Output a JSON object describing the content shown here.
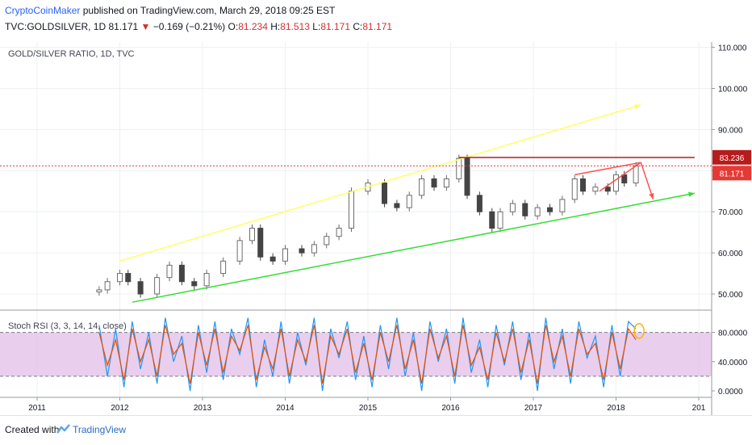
{
  "header": {
    "author": "CryptoCoinMaker",
    "published": "published on TradingView.com, March 29, 2018 09:25 EST",
    "symbol": "TVC:GOLDSILVER, 1D",
    "last": "81.171",
    "change": "−0.169 (−0.21%)",
    "o_label": "O:",
    "o": "81.234",
    "h_label": "H:",
    "h": "81.513",
    "l_label": "L:",
    "l": "81.171",
    "c_label": "C:",
    "c": "81.171"
  },
  "footer": {
    "created_with": "Created with",
    "brand": "TradingView"
  },
  "colors": {
    "up_candle": "#6d6d6d",
    "down_candle": "#444444",
    "upper_channel": "#ffff66",
    "lower_channel": "#33dd33",
    "resistance": "#b71c1c",
    "wedge": "#ff5252",
    "stoch_k": "#2196f3",
    "stoch_d": "#e65100",
    "stoch_band": "#e1bee7"
  },
  "chart_data": [
    {
      "type": "candlestick",
      "title": "GOLD/SILVER RATIO, 1D, TVC",
      "x_ticks": [
        "2011",
        "2012",
        "2013",
        "2014",
        "2015",
        "2016",
        "2017",
        "2018",
        "201"
      ],
      "y_ticks": [
        "110.000",
        "100.000",
        "90.000",
        "80.000",
        "70.000",
        "60.000",
        "50.000"
      ],
      "ylim": [
        47,
        111
      ],
      "price_labels": {
        "resistance": "83.236",
        "last": "81.171"
      },
      "series": [
        {
          "x": [
            2011.75,
            2011.85,
            2012.0,
            2012.1,
            2012.25,
            2012.45,
            2012.6,
            2012.75,
            2012.9,
            2013.05,
            2013.25,
            2013.45,
            2013.6,
            2013.7,
            2013.85,
            2014.0,
            2014.2,
            2014.35,
            2014.5,
            2014.65,
            2014.8,
            2015.0,
            2015.2,
            2015.35,
            2015.5,
            2015.65,
            2015.8,
            2015.95,
            2016.1,
            2016.2,
            2016.35,
            2016.5,
            2016.6,
            2016.75,
            2016.9,
            2017.05,
            2017.2,
            2017.35,
            2017.5,
            2017.6,
            2017.75,
            2017.9,
            2018.0,
            2018.1,
            2018.24
          ],
          "y": [
            51,
            53,
            55,
            53,
            50,
            54,
            57,
            53,
            52,
            55,
            58,
            63,
            66,
            59,
            58,
            61,
            60,
            62,
            64,
            66,
            75,
            77,
            72,
            71,
            74,
            78,
            76,
            78,
            83,
            74,
            70,
            66,
            70,
            72,
            69,
            71,
            70,
            73,
            78,
            75,
            76,
            75,
            79,
            77,
            81.2
          ]
        }
      ],
      "annotations": [
        {
          "type": "upper_channel",
          "x": [
            2012.0,
            2018.3
          ],
          "y": [
            58,
            96
          ]
        },
        {
          "type": "lower_channel",
          "x": [
            2012.15,
            2018.95
          ],
          "y": [
            48,
            74.5
          ]
        },
        {
          "type": "resistance",
          "x": [
            2016.1,
            2018.95
          ],
          "y": [
            83.2,
            83.2
          ]
        },
        {
          "type": "wedge_top",
          "x": [
            2017.5,
            2018.3
          ],
          "y": [
            79,
            82
          ]
        },
        {
          "type": "wedge_bottom",
          "x": [
            2017.8,
            2018.3
          ],
          "y": [
            75,
            82
          ]
        },
        {
          "type": "projection",
          "x": [
            2018.3,
            2018.45
          ],
          "y": [
            82,
            73
          ]
        }
      ]
    },
    {
      "type": "line",
      "title": "Stoch RSI (3, 3, 14, 14, close)",
      "y_ticks": [
        "80.0000",
        "40.0000",
        "0.0000"
      ],
      "ylim": [
        -5,
        105
      ],
      "bands": [
        20,
        80
      ],
      "series": [
        {
          "name": "K",
          "x": [
            2011.75,
            2011.85,
            2011.95,
            2012.05,
            2012.15,
            2012.25,
            2012.35,
            2012.45,
            2012.55,
            2012.65,
            2012.75,
            2012.85,
            2012.95,
            2013.05,
            2013.15,
            2013.25,
            2013.35,
            2013.45,
            2013.55,
            2013.65,
            2013.75,
            2013.85,
            2013.95,
            2014.05,
            2014.15,
            2014.25,
            2014.35,
            2014.45,
            2014.55,
            2014.65,
            2014.75,
            2014.85,
            2014.95,
            2015.05,
            2015.15,
            2015.25,
            2015.35,
            2015.45,
            2015.55,
            2015.65,
            2015.75,
            2015.85,
            2015.95,
            2016.05,
            2016.15,
            2016.25,
            2016.35,
            2016.45,
            2016.55,
            2016.65,
            2016.75,
            2016.85,
            2016.95,
            2017.05,
            2017.15,
            2017.25,
            2017.35,
            2017.45,
            2017.55,
            2017.65,
            2017.75,
            2017.85,
            2017.95,
            2018.05,
            2018.15,
            2018.24
          ],
          "y": [
            90,
            20,
            85,
            5,
            95,
            30,
            80,
            10,
            100,
            40,
            75,
            0,
            90,
            25,
            95,
            15,
            85,
            50,
            100,
            5,
            70,
            20,
            95,
            10,
            80,
            35,
            100,
            0,
            85,
            45,
            95,
            15,
            75,
            5,
            90,
            30,
            100,
            20,
            80,
            0,
            95,
            40,
            85,
            10,
            100,
            25,
            70,
            5,
            90,
            35,
            95,
            15,
            80,
            0,
            100,
            30,
            85,
            10,
            95,
            45,
            75,
            5,
            90,
            20,
            95,
            85
          ]
        },
        {
          "name": "D",
          "x": [
            2011.75,
            2011.85,
            2011.95,
            2012.05,
            2012.15,
            2012.25,
            2012.35,
            2012.45,
            2012.55,
            2012.65,
            2012.75,
            2012.85,
            2012.95,
            2013.05,
            2013.15,
            2013.25,
            2013.35,
            2013.45,
            2013.55,
            2013.65,
            2013.75,
            2013.85,
            2013.95,
            2014.05,
            2014.15,
            2014.25,
            2014.35,
            2014.45,
            2014.55,
            2014.65,
            2014.75,
            2014.85,
            2014.95,
            2015.05,
            2015.15,
            2015.25,
            2015.35,
            2015.45,
            2015.55,
            2015.65,
            2015.75,
            2015.85,
            2015.95,
            2016.05,
            2016.15,
            2016.25,
            2016.35,
            2016.45,
            2016.55,
            2016.65,
            2016.75,
            2016.85,
            2016.95,
            2017.05,
            2017.15,
            2017.25,
            2017.35,
            2017.45,
            2017.55,
            2017.65,
            2017.75,
            2017.85,
            2017.95,
            2018.05,
            2018.15,
            2018.24
          ],
          "y": [
            80,
            35,
            70,
            15,
            85,
            40,
            70,
            20,
            90,
            50,
            65,
            10,
            80,
            35,
            85,
            25,
            75,
            55,
            90,
            15,
            60,
            30,
            85,
            20,
            70,
            40,
            90,
            10,
            75,
            50,
            85,
            25,
            65,
            15,
            80,
            40,
            90,
            30,
            70,
            10,
            85,
            45,
            75,
            20,
            90,
            35,
            60,
            15,
            80,
            40,
            85,
            25,
            70,
            10,
            90,
            40,
            75,
            20,
            85,
            50,
            65,
            15,
            80,
            30,
            85,
            70
          ]
        }
      ]
    }
  ]
}
